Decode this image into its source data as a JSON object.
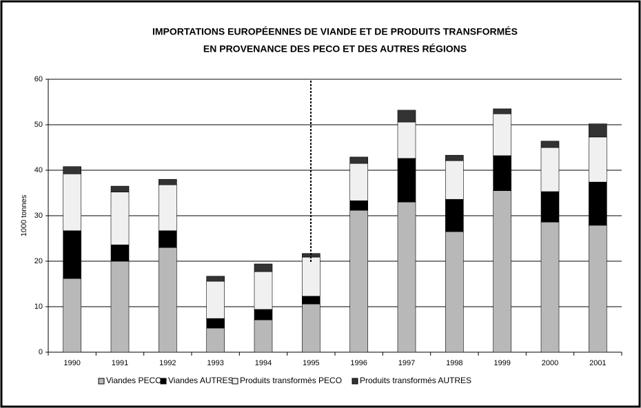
{
  "chart_data": {
    "type": "stacked_bar",
    "title": [
      "IMPORTATIONS EUROPÉENNES DE VIANDE ET DE PRODUITS TRANSFORMÉS",
      "EN PROVENANCE DES PECO ET DES AUTRES RÉGIONS"
    ],
    "y_label": "1000 tonnes",
    "categories": [
      "1990",
      "1991",
      "1992",
      "1993",
      "1994",
      "1995",
      "1996",
      "1997",
      "1998",
      "1999",
      "2000",
      "2001"
    ],
    "series": [
      {
        "name": "Viandes PECO",
        "color": "#b8b8b8",
        "values": [
          16.2,
          20.0,
          23.0,
          5.3,
          7.1,
          10.6,
          31.2,
          33.0,
          26.5,
          35.5,
          28.6,
          27.9
        ]
      },
      {
        "name": "Viandes AUTRES",
        "color": "#000000",
        "values": [
          10.5,
          3.6,
          3.7,
          2.1,
          2.3,
          1.7,
          2.1,
          9.6,
          7.1,
          7.7,
          6.7,
          9.5
        ]
      },
      {
        "name": "Produits transformés PECO",
        "color": "#f0f0f0",
        "values": [
          12.5,
          11.6,
          10.1,
          8.2,
          8.3,
          8.6,
          8.2,
          8.0,
          8.5,
          9.2,
          9.7,
          9.9
        ]
      },
      {
        "name": "Produits transformés AUTRES",
        "color": "#333333",
        "values": [
          1.6,
          1.3,
          1.2,
          1.1,
          1.7,
          0.8,
          1.4,
          2.6,
          1.2,
          1.1,
          1.4,
          2.9
        ]
      }
    ],
    "ylim": [
      0,
      60
    ],
    "yticks": [
      0,
      10,
      20,
      30,
      40,
      50,
      60
    ],
    "grid": true,
    "legend": "bottom"
  }
}
